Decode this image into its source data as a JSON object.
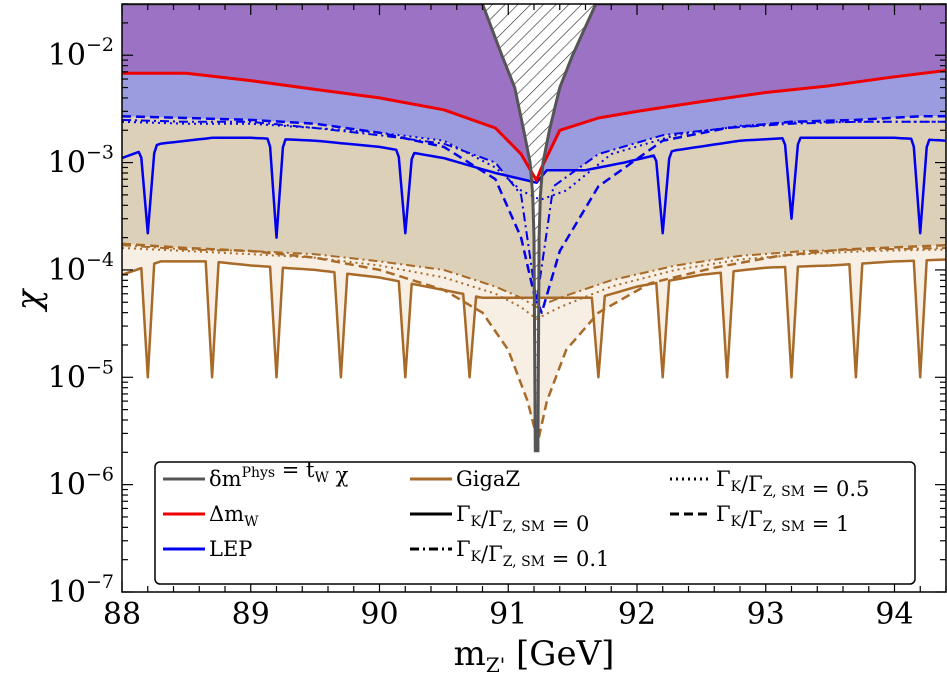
{
  "chart_data": {
    "type": "line",
    "xlabel": "m",
    "xlabel_sub": "Z'",
    "xlabel_unit": " [GeV]",
    "ylabel": "χ",
    "xlim": [
      88,
      94.4
    ],
    "ylim": [
      1e-07,
      0.03
    ],
    "yscale": "log",
    "grid": false,
    "x_ticks": [
      88,
      89,
      90,
      91,
      92,
      93,
      94
    ],
    "x_tick_labels": [
      "88",
      "89",
      "90",
      "91",
      "92",
      "93",
      "94"
    ],
    "y_ticks": [
      1e-07,
      1e-06,
      1e-05,
      0.0001,
      0.001,
      0.01
    ],
    "y_tick_labels": [
      {
        "base": "10",
        "exp": "−7"
      },
      {
        "base": "10",
        "exp": "−6"
      },
      {
        "base": "10",
        "exp": "−5"
      },
      {
        "base": "10",
        "exp": "−4"
      },
      {
        "base": "10",
        "exp": "−3"
      },
      {
        "base": "10",
        "exp": "−2"
      }
    ],
    "legend_placement": "bottom",
    "colors": {
      "delta_m_phys": "#555555",
      "delta_mW": "#ee0000",
      "LEP": "#0000ee",
      "GigaZ": "#a86a28",
      "region_purple": "#9c72c4",
      "region_lavender": "#9b9bdf",
      "region_tan": "#ddd0b8",
      "region_cream": "#f7efe4"
    },
    "legend": [
      {
        "key": "delta_m_phys",
        "style": "solid",
        "color": "#555555",
        "parts": [
          {
            "t": "δ"
          },
          {
            "t": "m"
          },
          {
            "t": "Phys",
            "sup": true
          },
          {
            "t": " = t"
          },
          {
            "t": "W",
            "sub": true
          },
          {
            "t": " χ"
          }
        ]
      },
      {
        "key": "delta_mW",
        "style": "solid",
        "color": "#ee0000",
        "parts": [
          {
            "t": "Δm"
          },
          {
            "t": "W",
            "sub": true
          }
        ]
      },
      {
        "key": "LEP",
        "style": "solid",
        "color": "#0000ee",
        "parts": [
          {
            "t": "LEP"
          }
        ]
      },
      {
        "key": "GigaZ",
        "style": "solid",
        "color": "#a86a28",
        "parts": [
          {
            "t": "GigaZ"
          }
        ]
      },
      {
        "key": "gamma0",
        "style": "solid",
        "color": "#000000",
        "parts": [
          {
            "t": "Γ"
          },
          {
            "t": "K",
            "sub": true
          },
          {
            "t": "/Γ"
          },
          {
            "t": "Z, SM",
            "sub": true
          },
          {
            "t": " = 0"
          }
        ]
      },
      {
        "key": "gamma01",
        "style": "dashdot",
        "color": "#000000",
        "parts": [
          {
            "t": "Γ"
          },
          {
            "t": "K",
            "sub": true
          },
          {
            "t": "/Γ"
          },
          {
            "t": "Z, SM",
            "sub": true
          },
          {
            "t": " = 0.1"
          }
        ]
      },
      {
        "key": "gamma05",
        "style": "dotted",
        "color": "#000000",
        "parts": [
          {
            "t": "Γ"
          },
          {
            "t": "K",
            "sub": true
          },
          {
            "t": "/Γ"
          },
          {
            "t": "Z, SM",
            "sub": true
          },
          {
            "t": " = 0.5"
          }
        ]
      },
      {
        "key": "gamma1",
        "style": "dashed",
        "color": "#000000",
        "parts": [
          {
            "t": "Γ"
          },
          {
            "t": "K",
            "sub": true
          },
          {
            "t": "/Γ"
          },
          {
            "t": "Z, SM",
            "sub": true
          },
          {
            "t": " = 1"
          }
        ]
      }
    ],
    "series": [
      {
        "key": "delta_m_phys",
        "style": "solid",
        "width": 3,
        "left": [
          [
            88.0,
            0.03
          ],
          [
            90.5,
            0.03
          ],
          [
            90.8,
            0.03
          ],
          [
            90.95,
            0.01
          ],
          [
            91.05,
            0.005
          ],
          [
            91.12,
            0.002
          ],
          [
            91.17,
            0.001
          ],
          [
            91.19,
            0.0005
          ],
          [
            91.2,
            0.0002
          ],
          [
            91.21,
            2e-06
          ]
        ],
        "right": [
          [
            91.23,
            2e-06
          ],
          [
            91.24,
            0.0002
          ],
          [
            91.25,
            0.0005
          ],
          [
            91.27,
            0.001
          ],
          [
            91.32,
            0.002
          ],
          [
            91.4,
            0.005
          ],
          [
            91.5,
            0.01
          ],
          [
            91.68,
            0.03
          ],
          [
            94.4,
            0.03
          ]
        ]
      },
      {
        "key": "delta_mW",
        "style": "solid",
        "width": 3,
        "points": [
          [
            88.0,
            0.0068
          ],
          [
            88.5,
            0.0068
          ],
          [
            89.0,
            0.0058
          ],
          [
            89.5,
            0.0048
          ],
          [
            90.0,
            0.004
          ],
          [
            90.5,
            0.0031
          ],
          [
            90.9,
            0.0021
          ],
          [
            91.1,
            0.0012
          ],
          [
            91.22,
            0.00068
          ],
          [
            91.25,
            0.00085
          ],
          [
            91.4,
            0.002
          ],
          [
            91.7,
            0.0026
          ],
          [
            92.0,
            0.003
          ],
          [
            92.5,
            0.0037
          ],
          [
            93.0,
            0.0045
          ],
          [
            93.5,
            0.0052
          ],
          [
            94.0,
            0.0063
          ],
          [
            94.4,
            0.0072
          ]
        ]
      },
      {
        "key": "LEP_gamma0",
        "style": "solid",
        "width": 2.5,
        "env": [
          [
            88.0,
            0.0011
          ],
          [
            88.3,
            0.0015
          ],
          [
            88.7,
            0.0017
          ],
          [
            89.0,
            0.0017
          ],
          [
            89.5,
            0.0016
          ],
          [
            90.0,
            0.0014
          ],
          [
            90.5,
            0.0011
          ],
          [
            90.9,
            0.0008
          ],
          [
            91.22,
            0.00065
          ],
          [
            91.3,
            0.00085
          ],
          [
            91.6,
            0.00085
          ],
          [
            91.9,
            0.001
          ],
          [
            92.3,
            0.0013
          ],
          [
            92.8,
            0.0016
          ],
          [
            93.2,
            0.0017
          ],
          [
            93.7,
            0.0017
          ],
          [
            94.0,
            0.0017
          ],
          [
            94.4,
            0.0016
          ]
        ],
        "dips": [
          [
            88.2,
            0.00022
          ],
          [
            89.2,
            0.0002
          ],
          [
            90.2,
            0.00022
          ],
          [
            92.2,
            0.00022
          ],
          [
            93.2,
            0.0003
          ],
          [
            94.2,
            0.00022
          ]
        ],
        "dip_width": 0.07
      },
      {
        "key": "LEP_gamma01",
        "style": "dashdot",
        "width": 2,
        "points": [
          [
            88.0,
            0.0025
          ],
          [
            88.5,
            0.0024
          ],
          [
            89.0,
            0.0024
          ],
          [
            89.5,
            0.0021
          ],
          [
            90.0,
            0.0018
          ],
          [
            90.5,
            0.0015
          ],
          [
            90.9,
            0.001
          ],
          [
            91.1,
            0.0005
          ],
          [
            91.22,
            5e-05
          ],
          [
            91.35,
            0.0006
          ],
          [
            91.7,
            0.0012
          ],
          [
            92.2,
            0.0018
          ],
          [
            92.7,
            0.0021
          ],
          [
            93.2,
            0.0023
          ],
          [
            93.7,
            0.0024
          ],
          [
            94.4,
            0.0024
          ]
        ]
      },
      {
        "key": "LEP_gamma05",
        "style": "dotted",
        "width": 2,
        "points": [
          [
            88.0,
            0.0024
          ],
          [
            88.5,
            0.0023
          ],
          [
            89.0,
            0.0023
          ],
          [
            89.5,
            0.0021
          ],
          [
            90.0,
            0.0019
          ],
          [
            90.5,
            0.0016
          ],
          [
            90.9,
            0.0009
          ],
          [
            91.1,
            0.00055
          ],
          [
            91.25,
            0.00045
          ],
          [
            91.45,
            0.00055
          ],
          [
            91.8,
            0.0012
          ],
          [
            92.3,
            0.0018
          ],
          [
            92.8,
            0.0022
          ],
          [
            93.3,
            0.0024
          ],
          [
            94.4,
            0.0024
          ]
        ]
      },
      {
        "key": "LEP_gamma1",
        "style": "dashed",
        "width": 2.5,
        "points": [
          [
            88.0,
            0.0027
          ],
          [
            88.5,
            0.0026
          ],
          [
            89.0,
            0.0025
          ],
          [
            89.5,
            0.0023
          ],
          [
            90.0,
            0.0019
          ],
          [
            90.5,
            0.0014
          ],
          [
            90.9,
            0.0007
          ],
          [
            91.1,
            0.0002
          ],
          [
            91.2,
            6e-05
          ],
          [
            91.26,
            4e-05
          ],
          [
            91.4,
            0.00015
          ],
          [
            91.7,
            0.0006
          ],
          [
            92.2,
            0.0016
          ],
          [
            92.7,
            0.0021
          ],
          [
            93.2,
            0.0024
          ],
          [
            93.7,
            0.0025
          ],
          [
            94.2,
            0.0027
          ],
          [
            94.4,
            0.0027
          ]
        ]
      },
      {
        "key": "GigaZ_gamma0",
        "style": "solid",
        "width": 2.5,
        "env": [
          [
            88.0,
            9e-05
          ],
          [
            88.3,
            0.00012
          ],
          [
            88.7,
            0.00012
          ],
          [
            89.0,
            0.00011
          ],
          [
            89.5,
            0.0001
          ],
          [
            90.0,
            8.5e-05
          ],
          [
            90.5,
            6.5e-05
          ],
          [
            90.8,
            5.5e-05
          ],
          [
            91.2,
            5.5e-05
          ],
          [
            91.7,
            5.5e-05
          ],
          [
            92.0,
            7e-05
          ],
          [
            92.5,
            9e-05
          ],
          [
            93.0,
            0.000105
          ],
          [
            93.5,
            0.00011
          ],
          [
            94.0,
            0.00012
          ],
          [
            94.4,
            0.000125
          ]
        ],
        "dips": [
          [
            88.2,
            1e-05
          ],
          [
            88.7,
            1e-05
          ],
          [
            89.2,
            1e-05
          ],
          [
            89.7,
            1e-05
          ],
          [
            90.2,
            1e-05
          ],
          [
            90.7,
            1e-05
          ],
          [
            91.7,
            1e-05
          ],
          [
            92.2,
            1e-05
          ],
          [
            92.7,
            1e-05
          ],
          [
            93.2,
            1e-05
          ],
          [
            93.7,
            1e-05
          ],
          [
            94.2,
            1e-05
          ]
        ],
        "dip_width": 0.05
      },
      {
        "key": "GigaZ_gamma01",
        "style": "dashdot",
        "width": 2,
        "points": [
          [
            88.0,
            0.00017
          ],
          [
            88.5,
            0.000155
          ],
          [
            89.0,
            0.00015
          ],
          [
            89.5,
            0.00014
          ],
          [
            90.0,
            0.00012
          ],
          [
            90.5,
            0.0001
          ],
          [
            90.9,
            7e-05
          ],
          [
            91.1,
            5.5e-05
          ],
          [
            91.22,
            4.5e-05
          ],
          [
            91.4,
            5.5e-05
          ],
          [
            91.8,
            8e-05
          ],
          [
            92.3,
            0.00011
          ],
          [
            92.8,
            0.000135
          ],
          [
            93.3,
            0.00015
          ],
          [
            93.8,
            0.000155
          ],
          [
            94.4,
            0.00016
          ]
        ]
      },
      {
        "key": "GigaZ_gamma05",
        "style": "dotted",
        "width": 2,
        "points": [
          [
            88.0,
            0.00016
          ],
          [
            88.5,
            0.00015
          ],
          [
            89.0,
            0.00014
          ],
          [
            89.5,
            0.00013
          ],
          [
            90.0,
            0.00011
          ],
          [
            90.5,
            8.5e-05
          ],
          [
            90.9,
            6e-05
          ],
          [
            91.1,
            4.5e-05
          ],
          [
            91.22,
            3.5e-05
          ],
          [
            91.4,
            4.5e-05
          ],
          [
            91.8,
            7e-05
          ],
          [
            92.3,
            0.0001
          ],
          [
            92.8,
            0.000125
          ],
          [
            93.3,
            0.00014
          ],
          [
            93.8,
            0.00015
          ],
          [
            94.4,
            0.000155
          ]
        ]
      },
      {
        "key": "GigaZ_gamma1",
        "style": "dashed",
        "width": 2.5,
        "points": [
          [
            88.0,
            0.000175
          ],
          [
            88.5,
            0.00016
          ],
          [
            89.0,
            0.00015
          ],
          [
            89.5,
            0.00013
          ],
          [
            90.0,
            0.0001
          ],
          [
            90.5,
            6.5e-05
          ],
          [
            90.8,
            4e-05
          ],
          [
            91.0,
            1.8e-05
          ],
          [
            91.15,
            6e-06
          ],
          [
            91.23,
            2.5e-06
          ],
          [
            91.3,
            6e-06
          ],
          [
            91.45,
            1.8e-05
          ],
          [
            91.7,
            4e-05
          ],
          [
            92.1,
            7.5e-05
          ],
          [
            92.6,
            0.000105
          ],
          [
            93.1,
            0.000135
          ],
          [
            93.6,
            0.000155
          ],
          [
            94.4,
            0.00017
          ]
        ]
      }
    ],
    "regions": [
      {
        "key": "region_cream",
        "lower": "GigaZ_min",
        "upper": "GigaZ_max"
      },
      {
        "key": "region_tan",
        "lower": "GigaZ_max",
        "upper": "LEP_max"
      },
      {
        "key": "region_lavender",
        "lower": "LEP_max",
        "upper": "delta_mW"
      },
      {
        "key": "region_purple",
        "lower": "delta_mW",
        "upper": "top"
      },
      {
        "key": "hatched",
        "between": "delta_m_phys"
      }
    ]
  }
}
